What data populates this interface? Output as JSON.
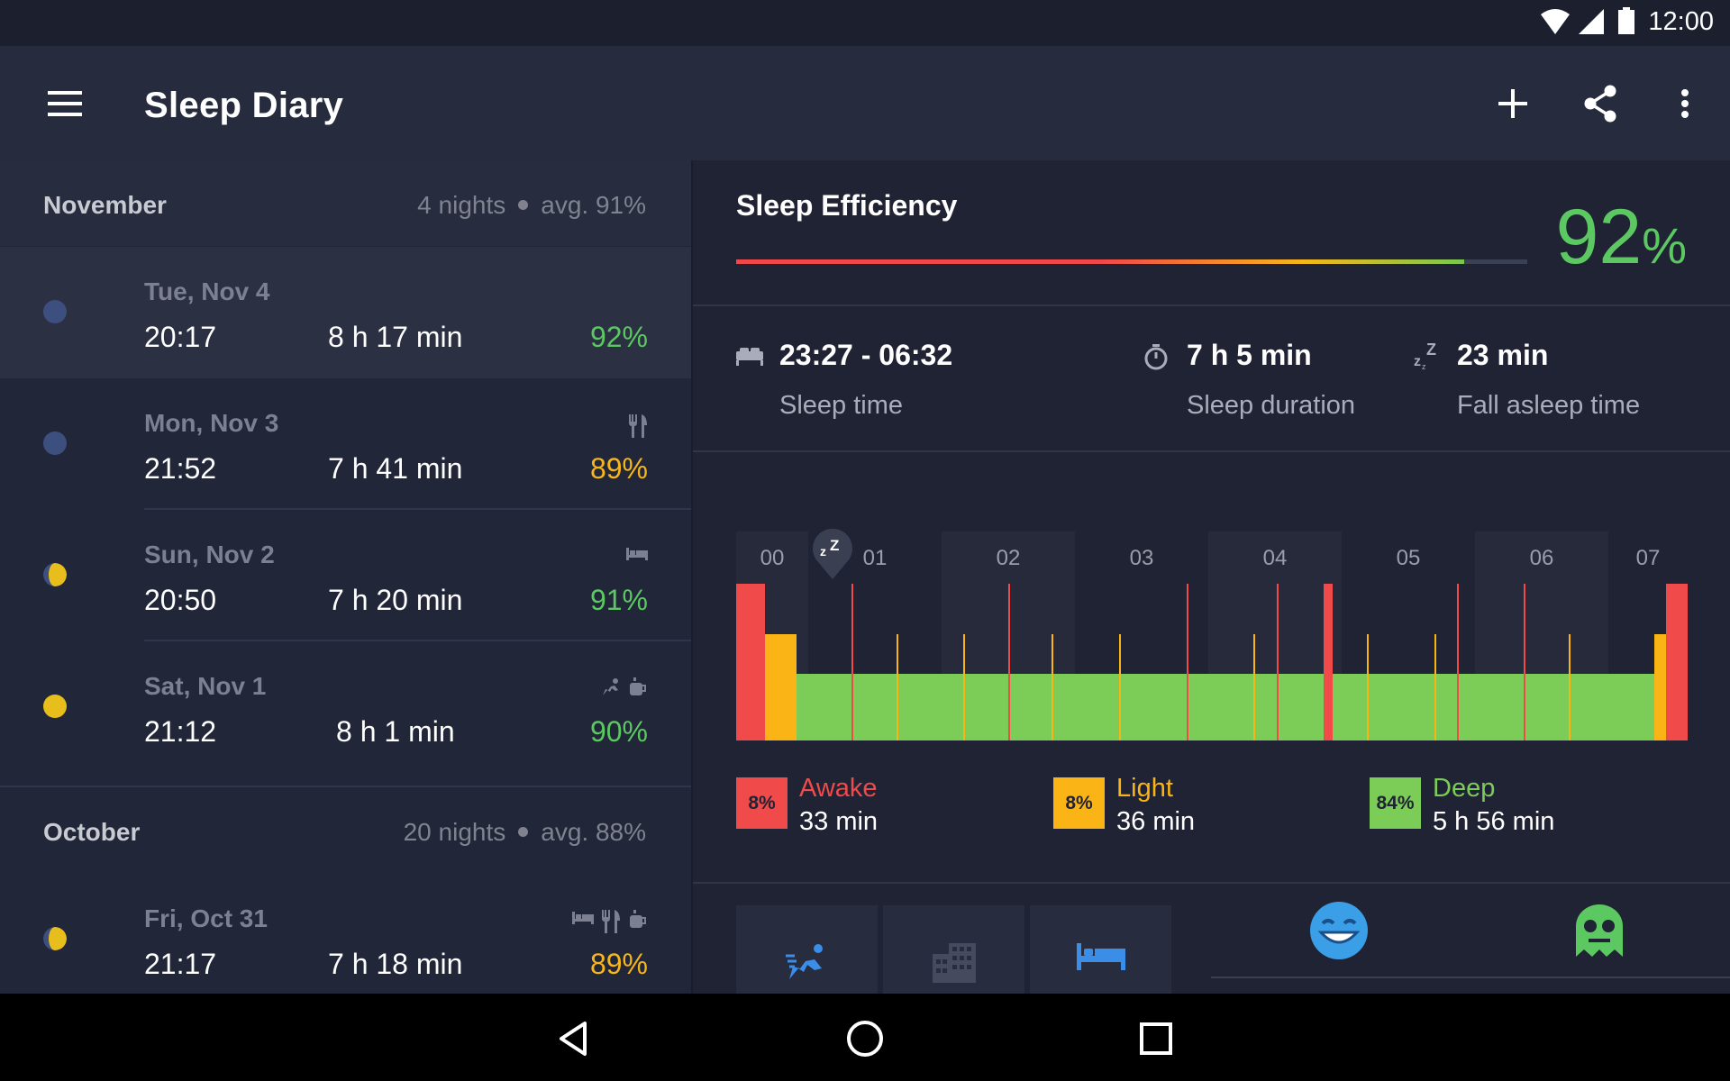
{
  "status_bar": {
    "time": "12:00"
  },
  "app_bar": {
    "title": "Sleep Diary"
  },
  "months": [
    {
      "name": "November",
      "nights": "4 nights",
      "avg": "avg. 91%"
    },
    {
      "name": "October",
      "nights": "20 nights",
      "avg": "avg. 88%"
    }
  ],
  "nights": [
    {
      "date": "Tue, Nov 4",
      "time": "20:17",
      "duration": "8 h 17 min",
      "efficiency": "92%",
      "moon": "new",
      "icons": []
    },
    {
      "date": "Mon, Nov 3",
      "time": "21:52",
      "duration": "7 h 41 min",
      "efficiency": "89%",
      "moon": "new",
      "icons": [
        "fork-knife-icon"
      ]
    },
    {
      "date": "Sun, Nov 2",
      "time": "20:50",
      "duration": "7 h 20 min",
      "efficiency": "91%",
      "moon": "waxing",
      "icons": [
        "bed-icon"
      ]
    },
    {
      "date": "Sat, Nov 1",
      "time": "21:12",
      "duration": "8 h 1 min",
      "efficiency": "90%",
      "moon": "full",
      "icons": [
        "running-icon",
        "coffee-icon"
      ]
    },
    {
      "date": "Fri, Oct 31",
      "time": "21:17",
      "duration": "7 h 18 min",
      "efficiency": "89%",
      "moon": "waxing",
      "icons": [
        "bed-icon",
        "fork-knife-icon",
        "coffee-icon"
      ]
    }
  ],
  "detail": {
    "efficiency_title": "Sleep Efficiency",
    "efficiency_value": "92",
    "efficiency_unit": "%",
    "efficiency_fraction": 0.92,
    "sleep_time": {
      "value": "23:27 - 06:32",
      "label": "Sleep time"
    },
    "sleep_duration": {
      "value": "7 h 5 min",
      "label": "Sleep duration"
    },
    "fall_asleep": {
      "value": "23 min",
      "label": "Fall asleep time"
    },
    "hours": [
      "00",
      "01",
      "02",
      "03",
      "04",
      "05",
      "06",
      "07"
    ],
    "legend": [
      {
        "pct": "8%",
        "name": "Awake",
        "value": "33 min"
      },
      {
        "pct": "8%",
        "name": "Light",
        "value": "36 min"
      },
      {
        "pct": "84%",
        "name": "Deep",
        "value": "5 h 56 min"
      }
    ]
  },
  "colors": {
    "awake": "#f04a4a",
    "light": "#fbb416",
    "deep": "#7ccc58",
    "green_text": "#5cc862",
    "orange_text": "#f6b61c",
    "new_moon": "#3d4f7e",
    "full_moon": "#e8be1c"
  }
}
